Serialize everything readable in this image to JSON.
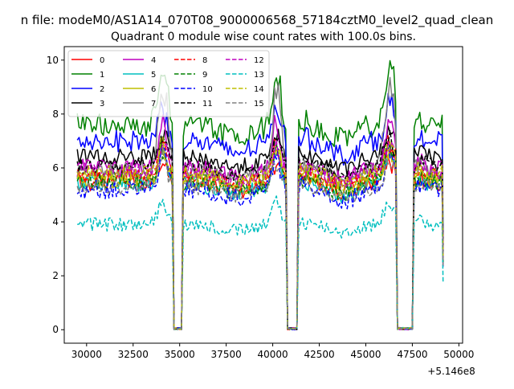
{
  "chart_data": {
    "type": "line",
    "suptitle": "n file: modeM0/AS1A14_070T08_9000006568_57184cztM0_level2_quad_clean",
    "title": "Quadrant 0 module wise count rates with 100.0s bins.",
    "xlabel": "",
    "ylabel": "",
    "x_offset_label": "+5.146e8",
    "xlim": [
      28800,
      50200
    ],
    "ylim": [
      -0.5,
      10.5
    ],
    "x_ticks": [
      30000,
      32500,
      35000,
      37500,
      40000,
      42500,
      45000,
      47500,
      50000
    ],
    "x_tick_labels": [
      "30000",
      "32500",
      "35000",
      "37500",
      "40000",
      "42500",
      "45000",
      "47500",
      "50000"
    ],
    "y_ticks": [
      0,
      2,
      4,
      6,
      8,
      10
    ],
    "y_tick_labels": [
      "0",
      "2",
      "4",
      "6",
      "8",
      "10"
    ],
    "legend_position": "top-left",
    "gaps": [
      [
        34600,
        35200
      ],
      [
        40700,
        41400
      ],
      [
        46600,
        47550
      ]
    ],
    "series": [
      {
        "name": "0",
        "color": "#ff0000",
        "dash": "solid",
        "base": 5.5,
        "amp": 0.35,
        "peak": 6.4
      },
      {
        "name": "1",
        "color": "#008000",
        "dash": "solid",
        "base": 7.6,
        "amp": 0.45,
        "peak": 10.0
      },
      {
        "name": "2",
        "color": "#0000ff",
        "dash": "solid",
        "base": 7.0,
        "amp": 0.4,
        "peak": 8.6
      },
      {
        "name": "3",
        "color": "#000000",
        "dash": "solid",
        "base": 6.4,
        "amp": 0.3,
        "peak": 7.5
      },
      {
        "name": "4",
        "color": "#bf00bf",
        "dash": "solid",
        "base": 6.0,
        "amp": 0.35,
        "peak": 8.0
      },
      {
        "name": "5",
        "color": "#00bfbf",
        "dash": "solid",
        "base": 5.4,
        "amp": 0.3,
        "peak": 6.8
      },
      {
        "name": "6",
        "color": "#bfbf00",
        "dash": "solid",
        "base": 5.6,
        "amp": 0.35,
        "peak": 7.0
      },
      {
        "name": "7",
        "color": "#808080",
        "dash": "solid",
        "base": 5.9,
        "amp": 0.3,
        "peak": 9.8
      },
      {
        "name": "8",
        "color": "#ff0000",
        "dash": "dashed",
        "base": 5.7,
        "amp": 0.3,
        "peak": 7.2
      },
      {
        "name": "9",
        "color": "#008000",
        "dash": "dashed",
        "base": 5.5,
        "amp": 0.35,
        "peak": 7.0
      },
      {
        "name": "10",
        "color": "#0000ff",
        "dash": "dashed",
        "base": 5.2,
        "amp": 0.35,
        "peak": 6.8
      },
      {
        "name": "11",
        "color": "#000000",
        "dash": "dashed",
        "base": 6.1,
        "amp": 0.3,
        "peak": 7.3
      },
      {
        "name": "12",
        "color": "#bf00bf",
        "dash": "dashed",
        "base": 5.9,
        "amp": 0.3,
        "peak": 7.0
      },
      {
        "name": "13",
        "color": "#00bfbf",
        "dash": "dashed",
        "base": 3.9,
        "amp": 0.25,
        "peak": 5.0
      },
      {
        "name": "14",
        "color": "#bfbf00",
        "dash": "dashed",
        "base": 5.8,
        "amp": 0.3,
        "peak": 7.1
      },
      {
        "name": "15",
        "color": "#808080",
        "dash": "dashed",
        "base": 5.3,
        "amp": 0.3,
        "peak": 6.6
      }
    ]
  }
}
